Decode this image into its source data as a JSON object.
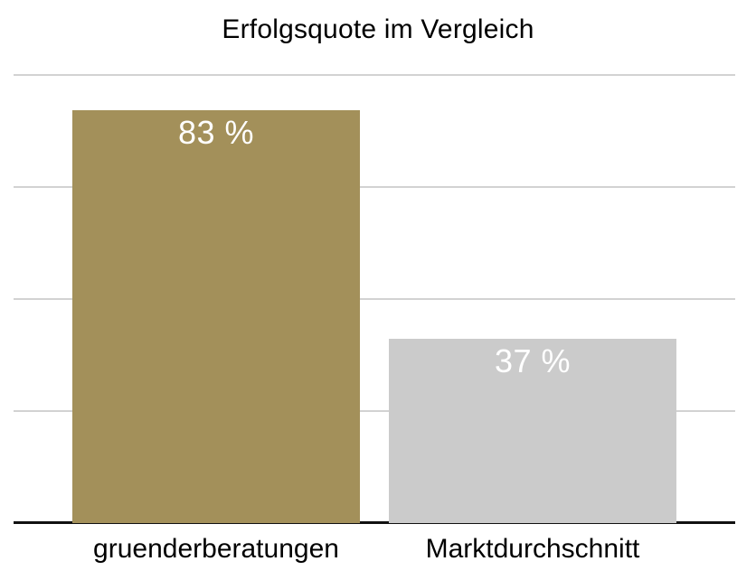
{
  "chart_data": {
    "type": "bar",
    "title": "Erfolgsquote im Vergleich",
    "categories": [
      "gruenderberatungen",
      "Marktdurchschnitt"
    ],
    "values": [
      83,
      37
    ],
    "value_labels": [
      "83 %",
      "37 %"
    ],
    "unit": "%",
    "xlabel": "",
    "ylabel": "",
    "ylim": [
      0,
      90
    ],
    "gridline_values": [
      22.5,
      45,
      67.5,
      90
    ],
    "grid": true,
    "legend": "none",
    "bar_colors": [
      "#a3905a",
      "#cbcbcb"
    ],
    "value_label_color": "#ffffff",
    "gridline_color": "#d2d2d2",
    "axis_color": "#111111",
    "title_color": "#000000",
    "category_label_color": "#000000",
    "background_color": "#ffffff"
  }
}
